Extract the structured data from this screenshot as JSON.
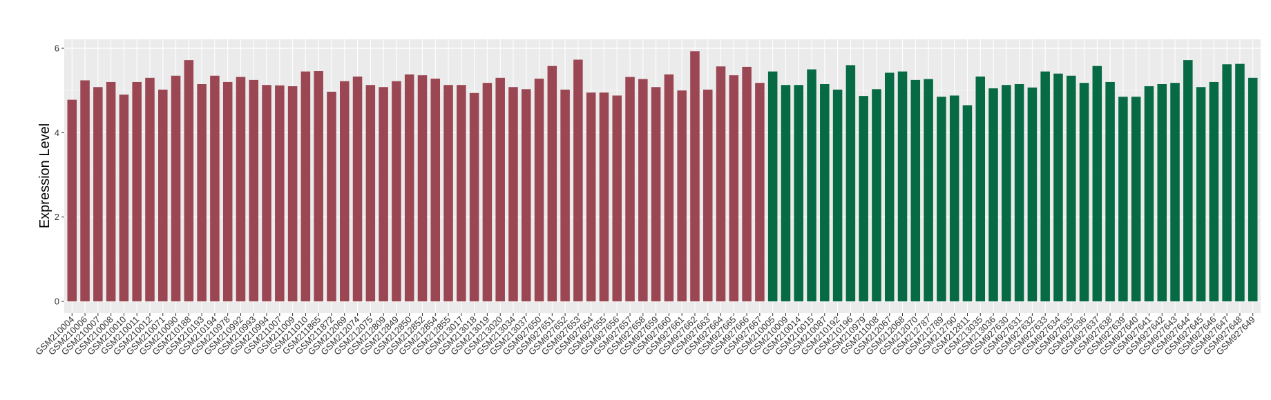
{
  "chart_data": {
    "type": "bar",
    "title": "",
    "xlabel": "",
    "ylabel": "Expression Level",
    "ylim": [
      0,
      6.2
    ],
    "yticks": [
      0,
      2,
      4,
      6
    ],
    "grid": true,
    "legend": "none",
    "colors": {
      "group1": "#9b4653",
      "group2": "#066a45",
      "panel": "#ebebeb",
      "grid": "#ffffff"
    },
    "categories": [
      "GSM210004",
      "GSM210006",
      "GSM210007",
      "GSM210008",
      "GSM210010",
      "GSM210011",
      "GSM210012",
      "GSM210071",
      "GSM210090",
      "GSM210188",
      "GSM210193",
      "GSM210194",
      "GSM210978",
      "GSM210992",
      "GSM210993",
      "GSM210994",
      "GSM211007",
      "GSM211009",
      "GSM211010",
      "GSM211865",
      "GSM211872",
      "GSM212069",
      "GSM212074",
      "GSM212075",
      "GSM212809",
      "GSM212849",
      "GSM212850",
      "GSM212852",
      "GSM212854",
      "GSM212855",
      "GSM213017",
      "GSM213018",
      "GSM213019",
      "GSM213020",
      "GSM213034",
      "GSM213037",
      "GSM927650",
      "GSM927651",
      "GSM927652",
      "GSM927653",
      "GSM927654",
      "GSM927655",
      "GSM927656",
      "GSM927657",
      "GSM927658",
      "GSM927659",
      "GSM927660",
      "GSM927661",
      "GSM927662",
      "GSM927663",
      "GSM927664",
      "GSM927665",
      "GSM927666",
      "GSM927667",
      "GSM210005",
      "GSM210009",
      "GSM210014",
      "GSM210015",
      "GSM210087",
      "GSM210192",
      "GSM210196",
      "GSM210979",
      "GSM211008",
      "GSM212067",
      "GSM212068",
      "GSM212070",
      "GSM212787",
      "GSM212789",
      "GSM212790",
      "GSM212811",
      "GSM213035",
      "GSM213036",
      "GSM927630",
      "GSM927631",
      "GSM927632",
      "GSM927633",
      "GSM927634",
      "GSM927635",
      "GSM927636",
      "GSM927637",
      "GSM927638",
      "GSM927639",
      "GSM927640",
      "GSM927641",
      "GSM927642",
      "GSM927643",
      "GSM927644",
      "GSM927645",
      "GSM927646",
      "GSM927647",
      "GSM927648",
      "GSM927649"
    ],
    "values": [
      4.78,
      5.24,
      5.08,
      5.2,
      4.9,
      5.2,
      5.3,
      5.02,
      5.35,
      5.72,
      5.15,
      5.35,
      5.2,
      5.32,
      5.25,
      5.13,
      5.12,
      5.1,
      5.45,
      5.46,
      4.97,
      5.22,
      5.33,
      5.13,
      5.08,
      5.22,
      5.38,
      5.36,
      5.28,
      5.13,
      5.13,
      4.94,
      5.18,
      5.3,
      5.08,
      5.03,
      5.28,
      5.58,
      5.02,
      5.73,
      4.95,
      4.95,
      4.88,
      5.32,
      5.27,
      5.08,
      5.38,
      5.0,
      5.93,
      5.02,
      5.57,
      5.36,
      5.56,
      5.18,
      5.45,
      5.13,
      5.13,
      5.5,
      5.15,
      5.02,
      5.6,
      4.87,
      5.03,
      5.42,
      5.45,
      5.25,
      5.27,
      4.85,
      4.88,
      4.65,
      5.33,
      5.05,
      5.13,
      5.15,
      5.07,
      5.45,
      5.4,
      5.35,
      5.18,
      5.58,
      5.2,
      4.85,
      4.85,
      5.1,
      5.15,
      5.18,
      5.72,
      5.08,
      5.2,
      5.62,
      5.63,
      5.3
    ],
    "groups": [
      1,
      1,
      1,
      1,
      1,
      1,
      1,
      1,
      1,
      1,
      1,
      1,
      1,
      1,
      1,
      1,
      1,
      1,
      1,
      1,
      1,
      1,
      1,
      1,
      1,
      1,
      1,
      1,
      1,
      1,
      1,
      1,
      1,
      1,
      1,
      1,
      1,
      1,
      1,
      1,
      1,
      1,
      1,
      1,
      1,
      1,
      1,
      1,
      1,
      1,
      1,
      1,
      1,
      1,
      2,
      2,
      2,
      2,
      2,
      2,
      2,
      2,
      2,
      2,
      2,
      2,
      2,
      2,
      2,
      2,
      2,
      2,
      2,
      2,
      2,
      2,
      2,
      2,
      2,
      2,
      2,
      2,
      2,
      2,
      2,
      2,
      2,
      2,
      2,
      2,
      2,
      2
    ]
  }
}
